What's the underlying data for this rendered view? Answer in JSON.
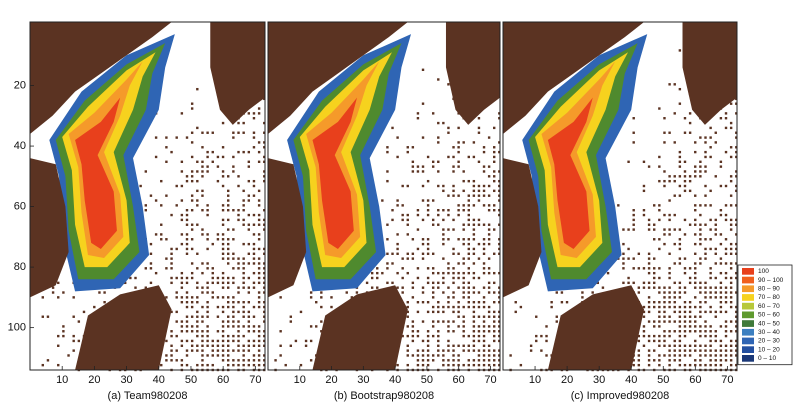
{
  "chart_data": [
    {
      "type": "heatmap",
      "xlabel": "(a) Team980208",
      "xlim": [
        0,
        73
      ],
      "ylim": [
        -1,
        114
      ],
      "xticks": [
        10,
        20,
        30,
        40,
        50,
        60,
        70
      ],
      "yticks": [
        20,
        40,
        60,
        80,
        100
      ]
    },
    {
      "type": "heatmap",
      "xlabel": "(b) Bootstrap980208",
      "xlim": [
        0,
        73
      ],
      "ylim": [
        -1,
        114
      ],
      "xticks": [
        10,
        20,
        30,
        40,
        50,
        60,
        70
      ]
    },
    {
      "type": "heatmap",
      "xlabel": "(c) Improved980208",
      "xlim": [
        0,
        73
      ],
      "ylim": [
        -1,
        114
      ],
      "xticks": [
        10,
        20,
        30,
        40,
        50,
        60,
        70
      ],
      "legend": {
        "labels": [
          "100",
          "90 – 100",
          "80 – 90",
          "70 – 80",
          "60 – 70",
          "50 – 60",
          "40 – 50",
          "30 – 40",
          "20 – 30",
          "10 – 20",
          "0 – 10"
        ],
        "colors": [
          "#e8401c",
          "#f0601e",
          "#f59a2a",
          "#f6d21e",
          "#b7c83a",
          "#5f9a2e",
          "#3f7a3a",
          "#3c7fc0",
          "#2f65b4",
          "#234fa0",
          "#1b3878"
        ]
      }
    }
  ]
}
